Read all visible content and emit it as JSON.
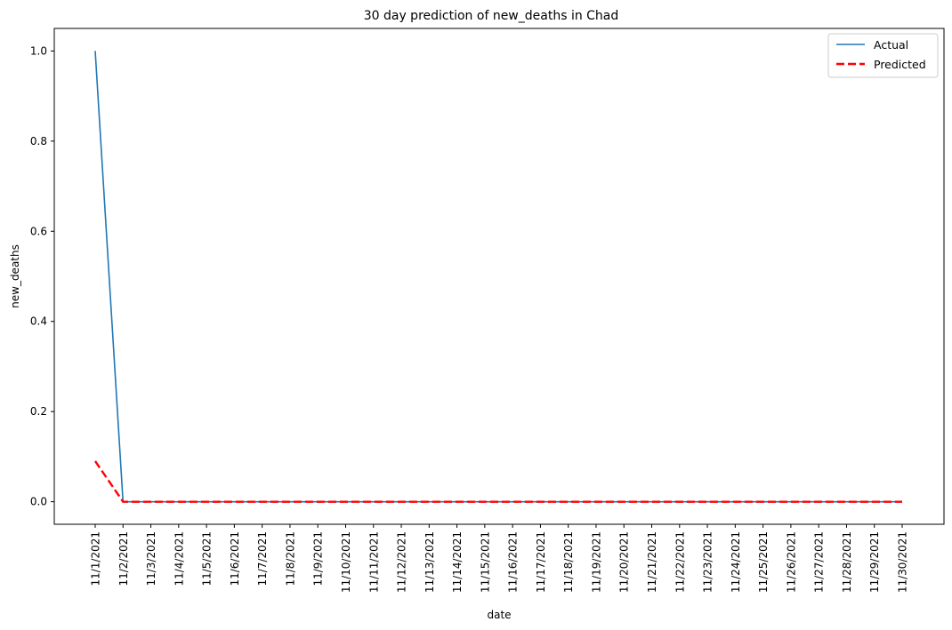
{
  "chart_data": {
    "type": "line",
    "title": "30 day prediction of new_deaths in Chad",
    "xlabel": "date",
    "ylabel": "new_deaths",
    "x": [
      "11/1/2021",
      "11/2/2021",
      "11/3/2021",
      "11/4/2021",
      "11/5/2021",
      "11/6/2021",
      "11/7/2021",
      "11/8/2021",
      "11/9/2021",
      "11/10/2021",
      "11/11/2021",
      "11/12/2021",
      "11/13/2021",
      "11/14/2021",
      "11/15/2021",
      "11/16/2021",
      "11/17/2021",
      "11/18/2021",
      "11/19/2021",
      "11/20/2021",
      "11/21/2021",
      "11/22/2021",
      "11/23/2021",
      "11/24/2021",
      "11/25/2021",
      "11/26/2021",
      "11/27/2021",
      "11/28/2021",
      "11/29/2021",
      "11/30/2021"
    ],
    "yticks": [
      "0.0",
      "0.2",
      "0.4",
      "0.6",
      "0.8",
      "1.0"
    ],
    "ylim": [
      -0.05,
      1.05
    ],
    "grid": false,
    "legend_position": "top-right",
    "series": [
      {
        "name": "Actual",
        "color": "#1f77b4",
        "style": "solid",
        "values": [
          1,
          0,
          0,
          0,
          0,
          0,
          0,
          0,
          0,
          0,
          0,
          0,
          0,
          0,
          0,
          0,
          0,
          0,
          0,
          0,
          0,
          0,
          0,
          0,
          0,
          0,
          0,
          0,
          0,
          0
        ]
      },
      {
        "name": "Predicted",
        "color": "#ff0000",
        "style": "dashed",
        "values": [
          0.09,
          0,
          0,
          0,
          0,
          0,
          0,
          0,
          0,
          0,
          0,
          0,
          0,
          0,
          0,
          0,
          0,
          0,
          0,
          0,
          0,
          0,
          0,
          0,
          0,
          0,
          0,
          0,
          0,
          0
        ]
      }
    ]
  }
}
